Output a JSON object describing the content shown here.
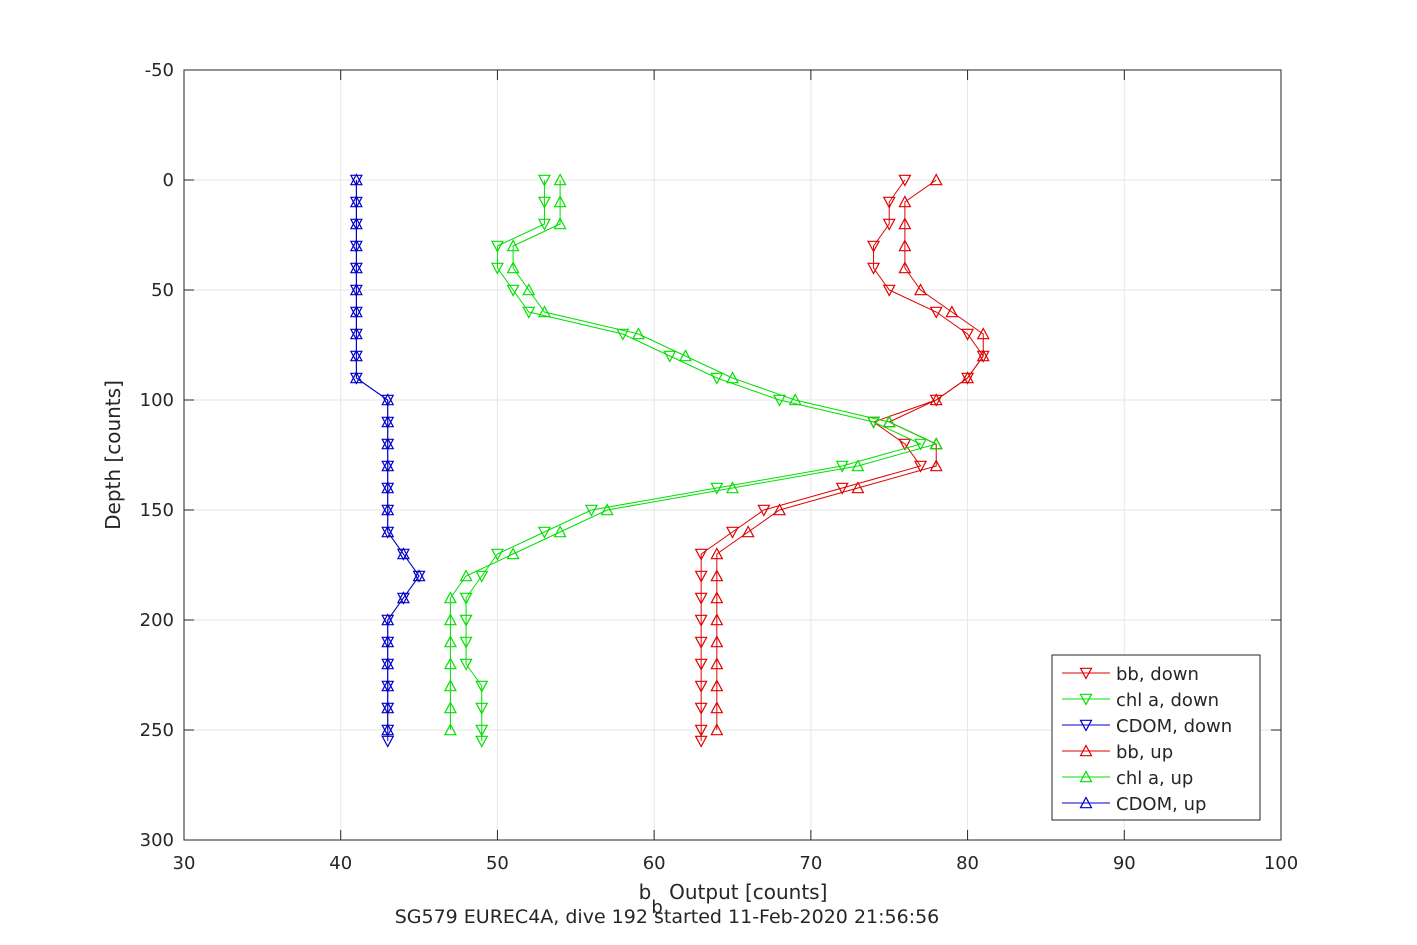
{
  "chart_data": {
    "type": "line",
    "xlabel_main": "b",
    "xlabel_sub": "b",
    "xlabel_rest": " Output [counts]",
    "ylabel": "Depth [counts]",
    "caption": "SG579 EUREC4A, dive 192 started 11-Feb-2020 21:56:56",
    "xlim": [
      30,
      100
    ],
    "ylim": [
      -50,
      300
    ],
    "y_reversed": true,
    "grid": true,
    "legend_position": "bottom-right",
    "xticks": [
      "30",
      "40",
      "50",
      "60",
      "70",
      "80",
      "90",
      "100"
    ],
    "yticks": [
      "-50",
      "0",
      "50",
      "100",
      "150",
      "200",
      "250",
      "300"
    ],
    "series": [
      {
        "name": "bb, down",
        "color": "#e00000",
        "marker": "down",
        "depth": [
          0,
          10,
          20,
          30,
          40,
          50,
          60,
          70,
          80,
          90,
          100,
          110,
          120,
          130,
          140,
          150,
          160,
          170,
          180,
          190,
          200,
          210,
          220,
          230,
          240,
          250,
          255
        ],
        "values": [
          76,
          75,
          75,
          74,
          74,
          75,
          78,
          80,
          81,
          80,
          78,
          74,
          76,
          77,
          72,
          67,
          65,
          63,
          63,
          63,
          63,
          63,
          63,
          63,
          63,
          63,
          63
        ]
      },
      {
        "name": "chl a, down",
        "color": "#00e000",
        "marker": "down",
        "depth": [
          0,
          10,
          20,
          30,
          40,
          50,
          60,
          70,
          80,
          90,
          100,
          110,
          120,
          130,
          140,
          150,
          160,
          170,
          180,
          190,
          200,
          210,
          220,
          230,
          240,
          250,
          255
        ],
        "values": [
          53,
          53,
          53,
          50,
          50,
          51,
          52,
          58,
          61,
          64,
          68,
          74,
          77,
          72,
          64,
          56,
          53,
          50,
          49,
          48,
          48,
          48,
          48,
          49,
          49,
          49,
          49
        ]
      },
      {
        "name": "CDOM, down",
        "color": "#0000c8",
        "marker": "down",
        "depth": [
          0,
          10,
          20,
          30,
          40,
          50,
          60,
          70,
          80,
          90,
          100,
          110,
          120,
          130,
          140,
          150,
          160,
          170,
          180,
          190,
          200,
          210,
          220,
          230,
          240,
          250,
          255
        ],
        "values": [
          41,
          41,
          41,
          41,
          41,
          41,
          41,
          41,
          41,
          41,
          43,
          43,
          43,
          43,
          43,
          43,
          43,
          44,
          45,
          44,
          43,
          43,
          43,
          43,
          43,
          43,
          43
        ]
      },
      {
        "name": "bb, up",
        "color": "#e00000",
        "marker": "up",
        "depth": [
          0,
          10,
          20,
          30,
          40,
          50,
          60,
          70,
          80,
          90,
          100,
          110,
          120,
          130,
          140,
          150,
          160,
          170,
          180,
          190,
          200,
          210,
          220,
          230,
          240,
          250
        ],
        "values": [
          78,
          76,
          76,
          76,
          76,
          77,
          79,
          81,
          81,
          80,
          78,
          75,
          78,
          78,
          73,
          68,
          66,
          64,
          64,
          64,
          64,
          64,
          64,
          64,
          64,
          64
        ]
      },
      {
        "name": "chl a, up",
        "color": "#00e000",
        "marker": "up",
        "depth": [
          0,
          10,
          20,
          30,
          40,
          50,
          60,
          70,
          80,
          90,
          100,
          110,
          120,
          130,
          140,
          150,
          160,
          170,
          180,
          190,
          200,
          210,
          220,
          230,
          240,
          250
        ],
        "values": [
          54,
          54,
          54,
          51,
          51,
          52,
          53,
          59,
          62,
          65,
          69,
          75,
          78,
          73,
          65,
          57,
          54,
          51,
          48,
          47,
          47,
          47,
          47,
          47,
          47,
          47
        ]
      },
      {
        "name": "CDOM, up",
        "color": "#0000c8",
        "marker": "up",
        "depth": [
          0,
          10,
          20,
          30,
          40,
          50,
          60,
          70,
          80,
          90,
          100,
          110,
          120,
          130,
          140,
          150,
          160,
          170,
          180,
          190,
          200,
          210,
          220,
          230,
          240,
          250
        ],
        "values": [
          41,
          41,
          41,
          41,
          41,
          41,
          41,
          41,
          41,
          41,
          43,
          43,
          43,
          43,
          43,
          43,
          43,
          44,
          45,
          44,
          43,
          43,
          43,
          43,
          43,
          43
        ]
      }
    ]
  }
}
